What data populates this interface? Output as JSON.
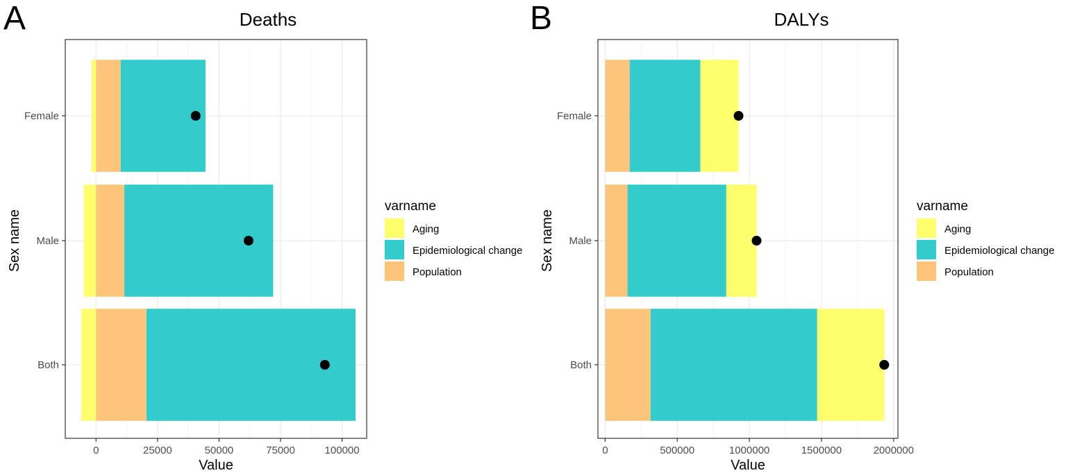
{
  "panels": [
    {
      "letter": "A",
      "chart": 0,
      "legend": {
        "title": "varname",
        "items": [
          "Aging",
          "Epidemiological change",
          "Population"
        ]
      }
    },
    {
      "letter": "B",
      "chart": 1,
      "legend": {
        "title": "varname",
        "items": [
          "Aging",
          "Epidemiological change",
          "Population"
        ]
      }
    }
  ],
  "colors": {
    "Aging": "#FFFF6E",
    "Epidemiological change": "#33CCCC",
    "Population": "#FCC57A",
    "dot": "#000000",
    "grid_major": "#EBEBEB",
    "grid_minor": "#F5F5F5",
    "border": "#333333"
  },
  "chart_data": [
    {
      "type": "bar",
      "orientation": "horizontal",
      "stacked": true,
      "title": "Deaths",
      "xlabel": "Value",
      "ylabel": "Sex name",
      "categories": [
        "Both",
        "Male",
        "Female"
      ],
      "xlim": [
        -12500,
        110000
      ],
      "xticks": [
        0,
        25000,
        50000,
        75000,
        100000
      ],
      "xtick_labels": [
        "0",
        "25000",
        "50000",
        "75000",
        "100000"
      ],
      "grid": true,
      "series": [
        {
          "name": "Aging",
          "values": [
            -6000,
            -5000,
            -1800
          ]
        },
        {
          "name": "Population",
          "values": [
            20500,
            11500,
            10000
          ]
        },
        {
          "name": "Epidemiological change",
          "values": [
            85000,
            60500,
            34500
          ]
        }
      ],
      "overall_change": [
        93000,
        62000,
        40500
      ]
    },
    {
      "type": "bar",
      "orientation": "horizontal",
      "stacked": true,
      "title": "DALYs",
      "xlabel": "Value",
      "ylabel": "Sex name",
      "categories": [
        "Both",
        "Male",
        "Female"
      ],
      "xlim": [
        -50000,
        2030000
      ],
      "xticks": [
        0,
        500000,
        1000000,
        1500000,
        2000000
      ],
      "xtick_labels": [
        "0",
        "500000",
        "1000000",
        "1500000",
        "2000000"
      ],
      "grid": true,
      "series": [
        {
          "name": "Population",
          "values": [
            315000,
            155000,
            170000
          ]
        },
        {
          "name": "Epidemiological change",
          "values": [
            1155000,
            685000,
            490000
          ]
        },
        {
          "name": "Aging",
          "values": [
            465000,
            210000,
            265000
          ]
        }
      ],
      "overall_change": [
        1935000,
        1050000,
        925000
      ]
    }
  ]
}
